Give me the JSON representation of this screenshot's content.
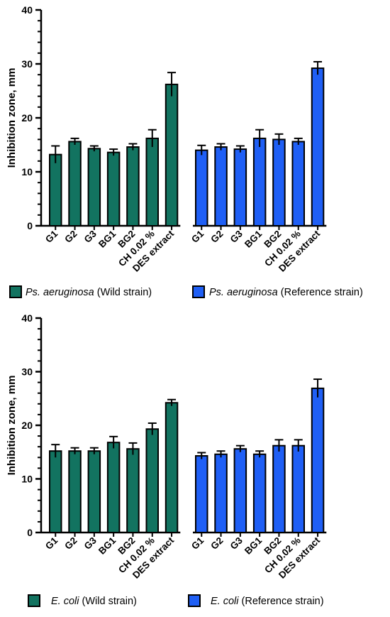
{
  "colors": {
    "wild": "#127360",
    "reference": "#1F5FF5",
    "stroke": "#000000"
  },
  "chart_data": [
    {
      "type": "bar",
      "ylabel": "Inhibition zone, mm",
      "ylim": [
        0,
        40
      ],
      "yticks": [
        0,
        10,
        20,
        30,
        40
      ],
      "categories": [
        "G1",
        "G2",
        "G3",
        "BG1",
        "BG2",
        "CH 0.02 %",
        "DES extract"
      ],
      "series": [
        {
          "name_italic": "Ps. aeruginosa",
          "name_suffix": " (Wild strain)",
          "color": "#127360",
          "values": [
            13.2,
            15.6,
            14.3,
            13.6,
            14.6,
            16.2,
            26.2
          ],
          "errors": [
            1.6,
            0.6,
            0.5,
            0.6,
            0.6,
            1.6,
            2.2
          ]
        },
        {
          "name_italic": "Ps. aeruginosa",
          "name_suffix": " (Reference strain)",
          "color": "#1F5FF5",
          "values": [
            14.0,
            14.6,
            14.2,
            16.2,
            16.0,
            15.6,
            29.2
          ],
          "errors": [
            0.9,
            0.6,
            0.6,
            1.6,
            1.0,
            0.6,
            1.2
          ]
        }
      ],
      "legend": "bottom"
    },
    {
      "type": "bar",
      "ylabel": "Inhibition zone, mm",
      "ylim": [
        0,
        40
      ],
      "yticks": [
        0,
        10,
        20,
        30,
        40
      ],
      "categories": [
        "G1",
        "G2",
        "G3",
        "BG1",
        "BG2",
        "CH 0.02 %",
        "DES extract"
      ],
      "series": [
        {
          "name_italic": "E. coli",
          "name_suffix": " (Wild strain)",
          "color": "#127360",
          "values": [
            15.2,
            15.2,
            15.2,
            16.8,
            15.6,
            19.3,
            24.2
          ],
          "errors": [
            1.2,
            0.6,
            0.6,
            1.1,
            1.1,
            1.1,
            0.6
          ]
        },
        {
          "name_italic": "E. coli",
          "name_suffix": " (Reference strain)",
          "color": "#1F5FF5",
          "values": [
            14.3,
            14.6,
            15.6,
            14.6,
            16.2,
            16.2,
            26.9
          ],
          "errors": [
            0.6,
            0.6,
            0.6,
            0.6,
            1.1,
            1.1,
            1.7
          ]
        }
      ],
      "legend": "bottom"
    }
  ]
}
